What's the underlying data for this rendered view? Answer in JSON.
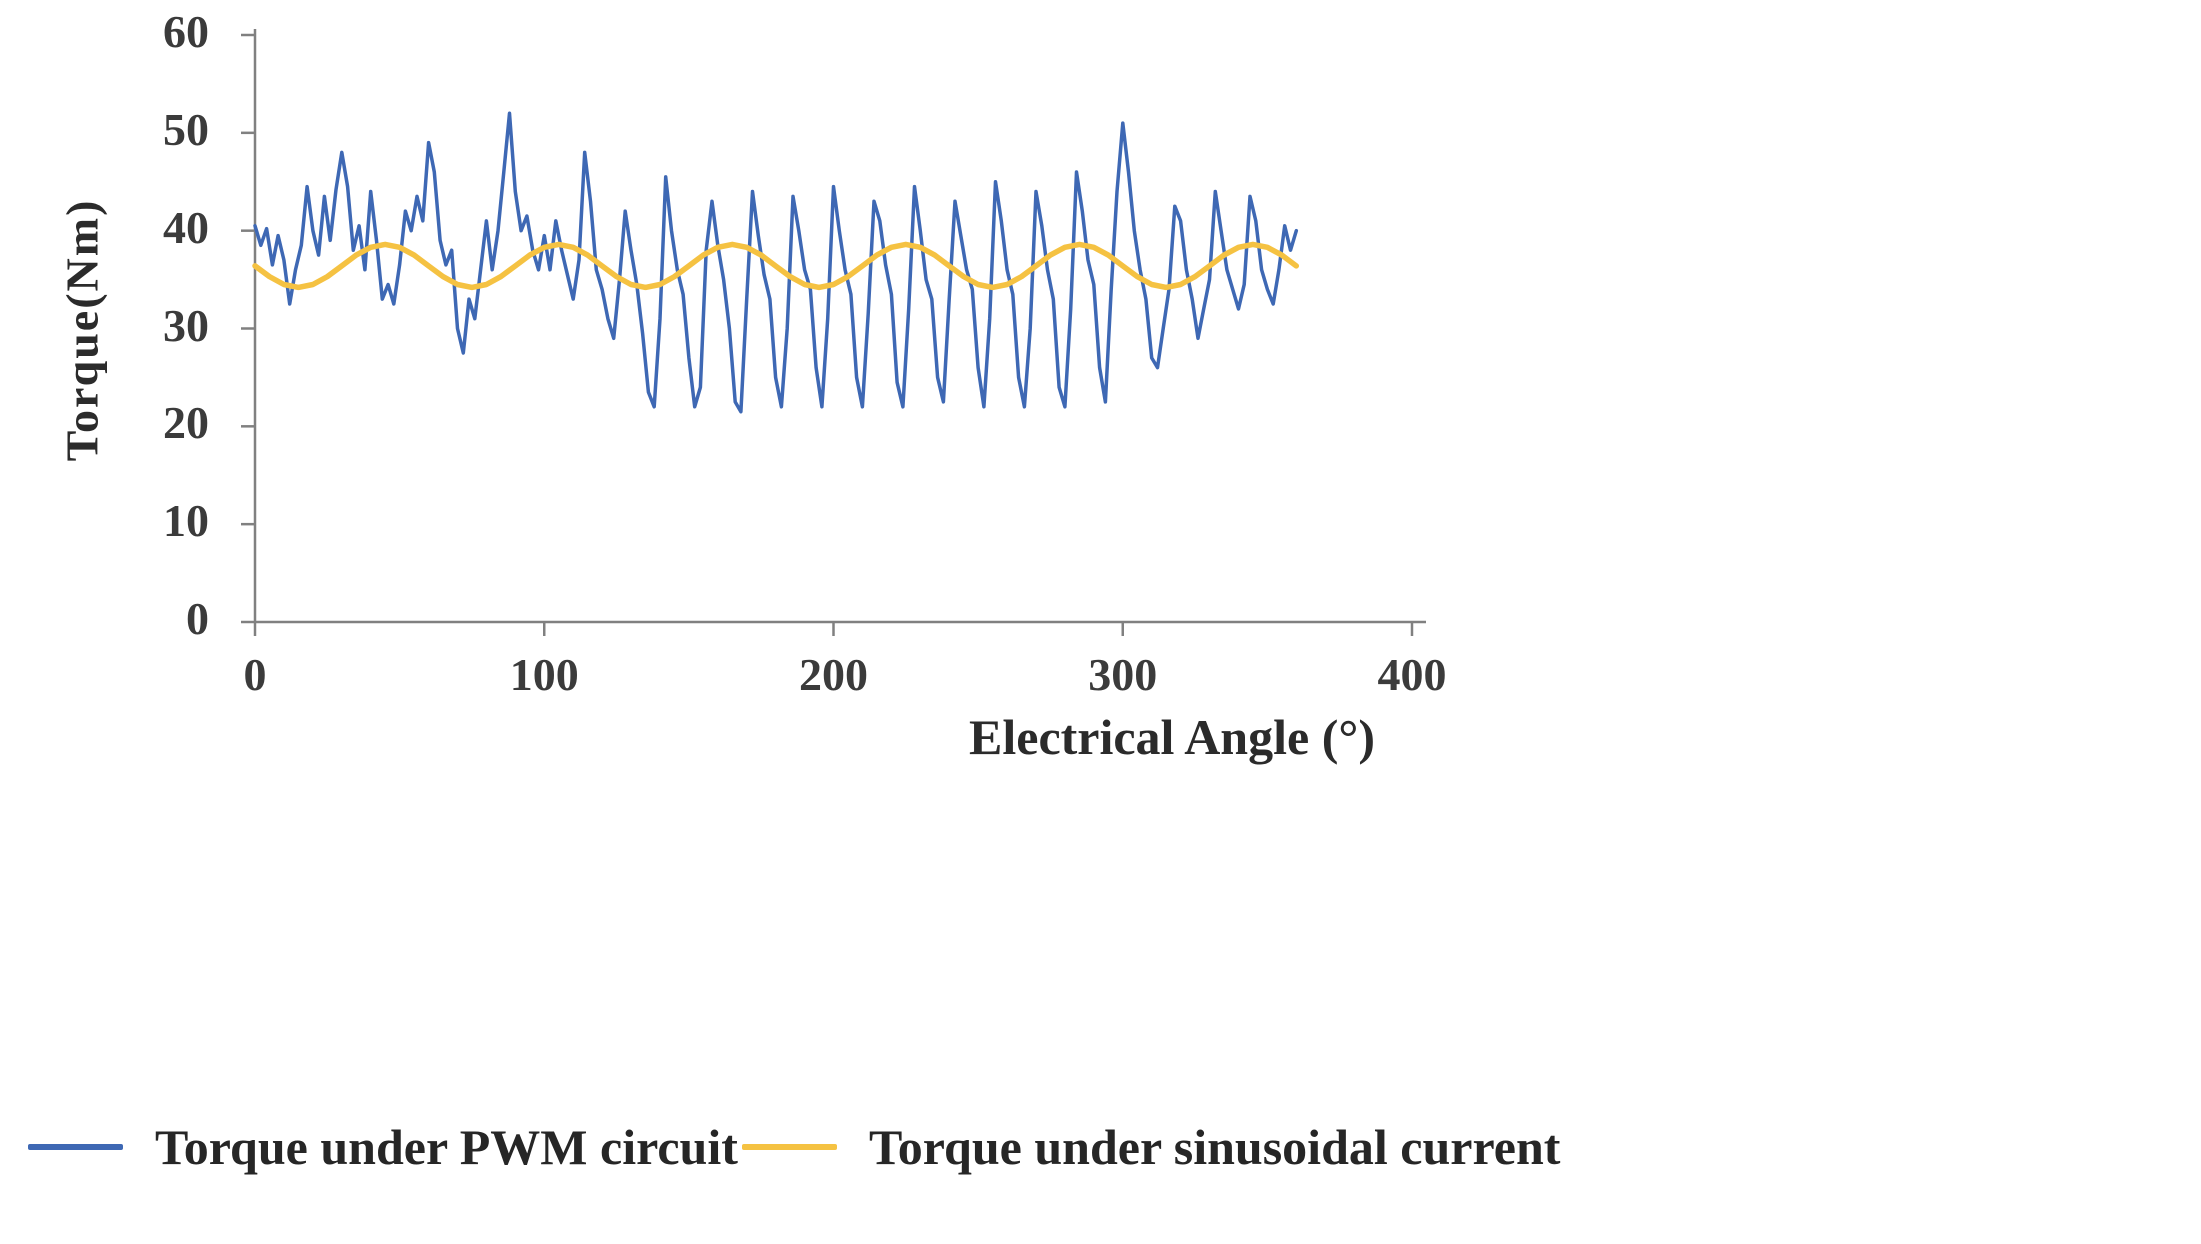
{
  "figure": {
    "background": "#ffffff"
  },
  "axes": {
    "y_label": "Torque(Nm)",
    "x_label": "Electrical Angle (°)",
    "axis_color": "#808080",
    "tick_label_color": "#3b3b3b"
  },
  "legend": {
    "position": "bottom",
    "items": [
      {
        "label": "Torque under PWM circuit",
        "color": "#3E68B4"
      },
      {
        "label": "Torque under sinusoidal current",
        "color": "#F5C242"
      }
    ]
  },
  "chart_data": {
    "type": "line",
    "title": "",
    "xlabel": "Electrical Angle (°)",
    "ylabel": "Torque(Nm)",
    "xlim": [
      0,
      400
    ],
    "ylim": [
      0,
      60
    ],
    "x_ticks": [
      0,
      100,
      200,
      300,
      400
    ],
    "y_ticks": [
      0,
      10,
      20,
      30,
      40,
      50,
      60
    ],
    "grid": false,
    "legend_position": "bottom",
    "series": [
      {
        "name": "Torque under PWM circuit",
        "color": "#3E68B4",
        "x_start": 0,
        "x_step": 2,
        "values": [
          40.5,
          38.5,
          40.2,
          36.5,
          39.5,
          37,
          32.5,
          36,
          38.5,
          44.5,
          40,
          37.5,
          43.5,
          39,
          44.2,
          48,
          44.5,
          38,
          40.5,
          36,
          44,
          39,
          33,
          34.5,
          32.5,
          36.5,
          42,
          40,
          43.5,
          41,
          49,
          46,
          39,
          36.5,
          38,
          30,
          27.5,
          33,
          31,
          36,
          41,
          36,
          40,
          46,
          52,
          44,
          40,
          41.5,
          38,
          36,
          39.5,
          36,
          41,
          38,
          35.5,
          33,
          37,
          48,
          43,
          36,
          34,
          31,
          29,
          35,
          42,
          38,
          34.5,
          29.5,
          23.5,
          22,
          31,
          45.5,
          40,
          36,
          33.5,
          27,
          22,
          24,
          38,
          43,
          38.5,
          35,
          30,
          22.5,
          21.5,
          33,
          44,
          39.5,
          35.5,
          33,
          25,
          22,
          30,
          43.5,
          40,
          36,
          34,
          26,
          22,
          31,
          44.5,
          40,
          36,
          33.5,
          25,
          22,
          31.5,
          43,
          41,
          36.5,
          33.5,
          24.5,
          22,
          32,
          44.5,
          40,
          35,
          33,
          25,
          22.5,
          33,
          43,
          39.5,
          36,
          34,
          26,
          22,
          31,
          45,
          41,
          36,
          33.5,
          25,
          22,
          30,
          44,
          40.5,
          36,
          33,
          24,
          22,
          32,
          46,
          42,
          37,
          34.5,
          26,
          22.5,
          34,
          44,
          51,
          46,
          40,
          36,
          33,
          27,
          26,
          30,
          34,
          42.5,
          41,
          36,
          33,
          29,
          32,
          35,
          44,
          40,
          36,
          34,
          32,
          34.5,
          43.5,
          41,
          36,
          34,
          32.5,
          36,
          40.5,
          38,
          40
        ]
      },
      {
        "name": "Torque under sinusoidal current",
        "color": "#F5C242",
        "x_start": 0,
        "x_step": 5,
        "values": [
          36.4,
          35.3,
          34.5,
          34.2,
          34.5,
          35.3,
          36.4,
          37.5,
          38.3,
          38.6,
          38.3,
          37.5,
          36.4,
          35.3,
          34.5,
          34.2,
          34.5,
          35.3,
          36.4,
          37.5,
          38.3,
          38.6,
          38.3,
          37.5,
          36.4,
          35.3,
          34.5,
          34.2,
          34.5,
          35.3,
          36.4,
          37.5,
          38.3,
          38.6,
          38.3,
          37.5,
          36.4,
          35.3,
          34.5,
          34.2,
          34.5,
          35.3,
          36.4,
          37.5,
          38.3,
          38.6,
          38.3,
          37.5,
          36.4,
          35.3,
          34.5,
          34.2,
          34.5,
          35.3,
          36.4,
          37.5,
          38.3,
          38.6,
          38.3,
          37.5,
          36.4,
          35.3,
          34.5,
          34.2,
          34.5,
          35.3,
          36.4,
          37.5,
          38.3,
          38.6,
          38.3,
          37.5,
          36.4
        ]
      }
    ]
  }
}
